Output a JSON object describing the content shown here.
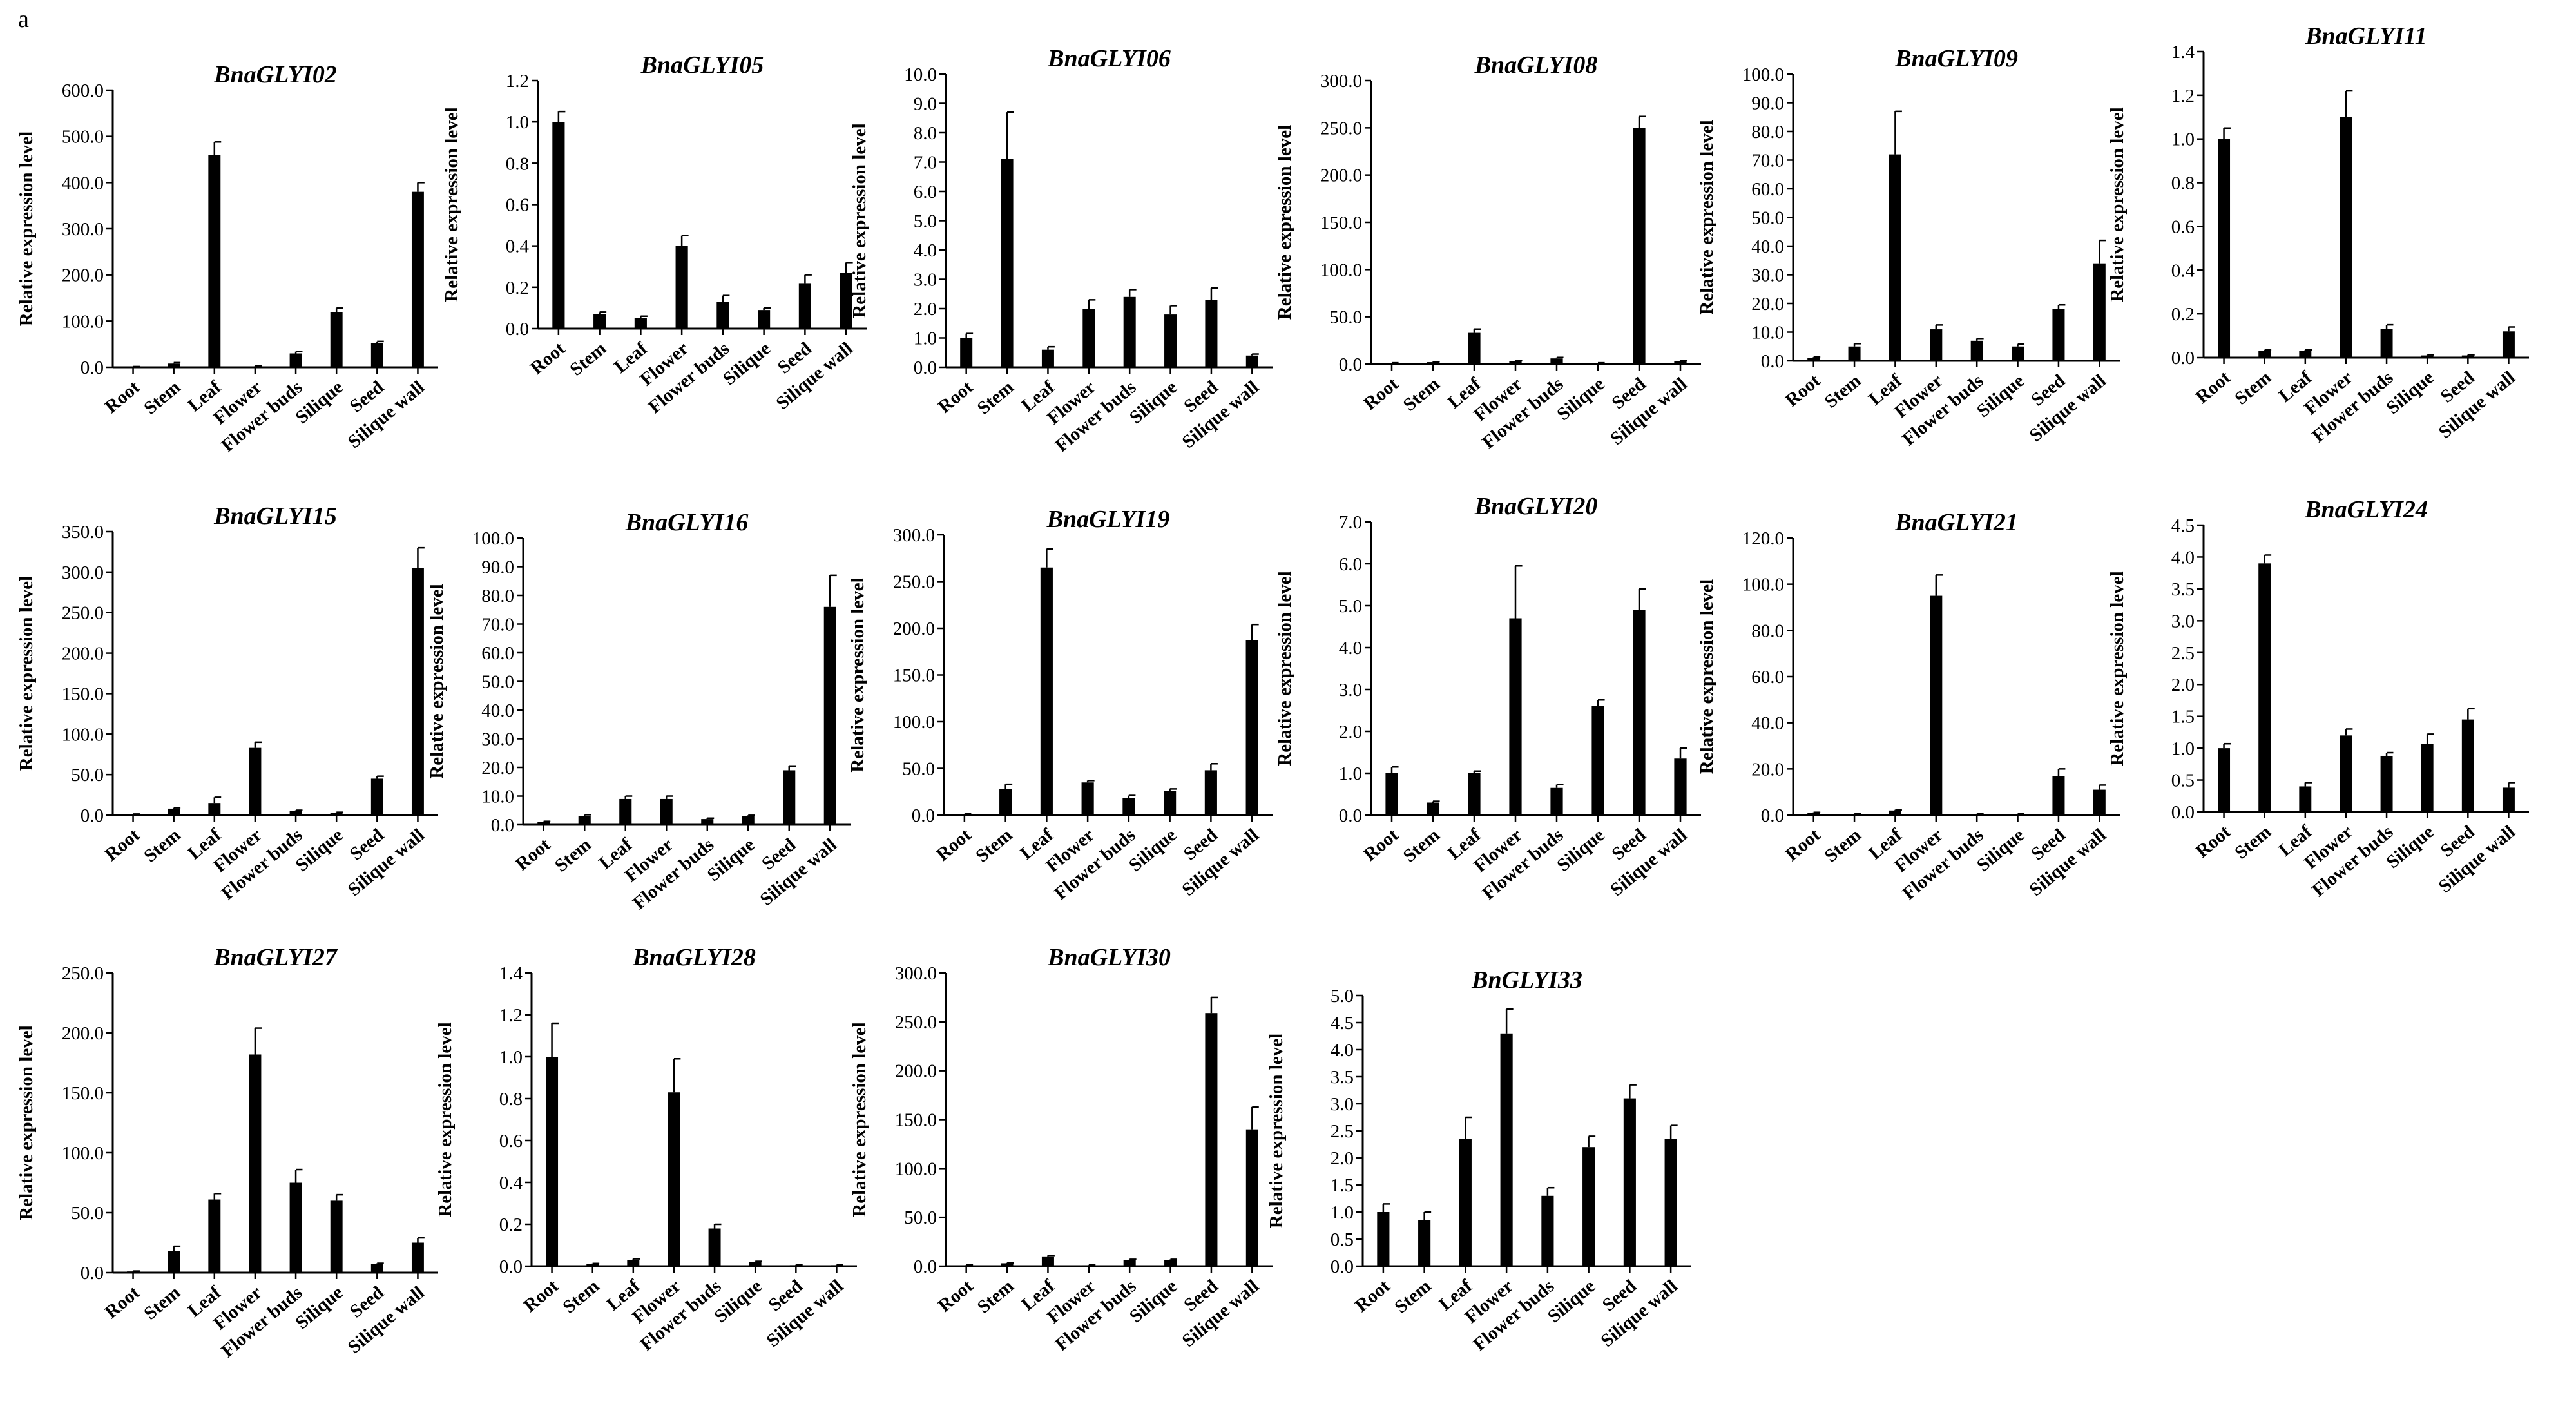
{
  "figure": {
    "panel_label": "a"
  },
  "colors": {
    "bar": "#000000",
    "axis": "#000000",
    "background": "#ffffff"
  },
  "chart_data": [
    {
      "type": "bar",
      "title": "BnaGLYI02",
      "ylabel": "Relative expression level",
      "xlabel": "",
      "categories": [
        "Root",
        "Stem",
        "Leaf",
        "Flower",
        "Flower buds",
        "Silique",
        "Seed",
        "Silique wall"
      ],
      "values": [
        1.0,
        8.0,
        460.0,
        2.0,
        30.0,
        120.0,
        52.0,
        380.0
      ],
      "errors": [
        0.5,
        2.0,
        28.0,
        0.5,
        4.0,
        8.0,
        4.0,
        20.0
      ],
      "ylim": [
        0,
        600
      ],
      "yticks": [
        "0.0",
        "100.0",
        "200.0",
        "300.0",
        "400.0",
        "500.0",
        "600.0"
      ]
    },
    {
      "type": "bar",
      "title": "BnaGLYI05",
      "ylabel": "Relative expression level",
      "xlabel": "",
      "categories": [
        "Root",
        "Stem",
        "Leaf",
        "Flower",
        "Flower buds",
        "Silique",
        "Seed",
        "Silique wall"
      ],
      "values": [
        1.0,
        0.07,
        0.05,
        0.4,
        0.13,
        0.09,
        0.22,
        0.27
      ],
      "errors": [
        0.05,
        0.01,
        0.01,
        0.05,
        0.03,
        0.01,
        0.04,
        0.05
      ],
      "ylim": [
        0,
        1.2
      ],
      "yticks": [
        "0.0",
        "0.2",
        "0.4",
        "0.6",
        "0.8",
        "1.0",
        "1.2"
      ]
    },
    {
      "type": "bar",
      "title": "BnaGLYI06",
      "ylabel": "Relative expression level",
      "xlabel": "",
      "categories": [
        "Root",
        "Stem",
        "Leaf",
        "Flower",
        "Flower buds",
        "Silique",
        "Seed",
        "Silique wall"
      ],
      "values": [
        1.0,
        7.1,
        0.6,
        2.0,
        2.4,
        1.8,
        2.3,
        0.4
      ],
      "errors": [
        0.15,
        1.6,
        0.1,
        0.3,
        0.25,
        0.3,
        0.4,
        0.05
      ],
      "ylim": [
        0,
        10
      ],
      "yticks": [
        "0.0",
        "1.0",
        "2.0",
        "3.0",
        "4.0",
        "5.0",
        "6.0",
        "7.0",
        "8.0",
        "9.0",
        "10.0"
      ]
    },
    {
      "type": "bar",
      "title": "BnaGLYI08",
      "ylabel": "Relative expression level",
      "xlabel": "",
      "categories": [
        "Root",
        "Stem",
        "Leaf",
        "Flower",
        "Flower buds",
        "Silique",
        "Seed",
        "Silique wall"
      ],
      "values": [
        1.0,
        2.0,
        33.0,
        3.0,
        6.0,
        1.0,
        250.0,
        3.0
      ],
      "errors": [
        0.3,
        0.5,
        4.0,
        0.5,
        1.0,
        0.3,
        12.0,
        0.5
      ],
      "ylim": [
        0,
        300
      ],
      "yticks": [
        "0.0",
        "50.0",
        "100.0",
        "150.0",
        "200.0",
        "250.0",
        "300.0"
      ]
    },
    {
      "type": "bar",
      "title": "BnaGLYI09",
      "ylabel": "Relative expression level",
      "xlabel": "",
      "categories": [
        "Root",
        "Stem",
        "Leaf",
        "Flower",
        "Flower buds",
        "Silique",
        "Seed",
        "Silique wall"
      ],
      "values": [
        1.0,
        5.0,
        72.0,
        11.0,
        7.0,
        5.0,
        18.0,
        34.0
      ],
      "errors": [
        0.3,
        1.0,
        15.0,
        1.5,
        0.8,
        0.8,
        1.5,
        8.0
      ],
      "ylim": [
        0,
        100
      ],
      "yticks": [
        "0.0",
        "10.0",
        "20.0",
        "30.0",
        "40.0",
        "50.0",
        "60.0",
        "70.0",
        "80.0",
        "90.0",
        "100.0"
      ]
    },
    {
      "type": "bar",
      "title": "BnaGLYI11",
      "ylabel": "Relative expression level",
      "xlabel": "",
      "categories": [
        "Root",
        "Stem",
        "Leaf",
        "Flower",
        "Flower buds",
        "Silique",
        "Seed",
        "Silique wall"
      ],
      "values": [
        1.0,
        0.03,
        0.03,
        1.1,
        0.13,
        0.01,
        0.01,
        0.12
      ],
      "errors": [
        0.05,
        0.005,
        0.005,
        0.12,
        0.02,
        0.003,
        0.003,
        0.02
      ],
      "ylim": [
        0,
        1.4
      ],
      "yticks": [
        "0.0",
        "0.2",
        "0.4",
        "0.6",
        "0.8",
        "1.0",
        "1.2",
        "1.4"
      ]
    },
    {
      "type": "bar",
      "title": "BnaGLYI15",
      "ylabel": "Relative expression level",
      "xlabel": "",
      "categories": [
        "Root",
        "Stem",
        "Leaf",
        "Flower",
        "Flower buds",
        "Silique",
        "Seed",
        "Silique wall"
      ],
      "values": [
        1.0,
        8.0,
        15.0,
        83.0,
        5.0,
        3.0,
        45.0,
        305.0
      ],
      "errors": [
        0.3,
        1.0,
        7.0,
        7.0,
        1.0,
        0.5,
        3.0,
        25.0
      ],
      "ylim": [
        0,
        350
      ],
      "yticks": [
        "0.0",
        "50.0",
        "100.0",
        "150.0",
        "200.0",
        "250.0",
        "300.0",
        "350.0"
      ]
    },
    {
      "type": "bar",
      "title": "BnaGLYI16",
      "ylabel": "Relative expression level",
      "xlabel": "",
      "categories": [
        "Root",
        "Stem",
        "Leaf",
        "Flower",
        "Flower buds",
        "Silique",
        "Seed",
        "Silique wall"
      ],
      "values": [
        1.0,
        3.0,
        9.0,
        9.0,
        2.0,
        3.0,
        19.0,
        76.0
      ],
      "errors": [
        0.2,
        0.5,
        1.0,
        1.0,
        0.3,
        0.3,
        1.5,
        11.0
      ],
      "ylim": [
        0,
        100
      ],
      "yticks": [
        "0.0",
        "10.0",
        "20.0",
        "30.0",
        "40.0",
        "50.0",
        "60.0",
        "70.0",
        "80.0",
        "90.0",
        "100.0"
      ]
    },
    {
      "type": "bar",
      "title": "BnaGLYI19",
      "ylabel": "Relative expression level",
      "xlabel": "",
      "categories": [
        "Root",
        "Stem",
        "Leaf",
        "Flower",
        "Flower buds",
        "Silique",
        "Seed",
        "Silique wall"
      ],
      "values": [
        1.0,
        28.0,
        265.0,
        35.0,
        18.0,
        26.0,
        48.0,
        187.0
      ],
      "errors": [
        0.3,
        5.0,
        20.0,
        2.0,
        3.0,
        2.0,
        7.0,
        17.0
      ],
      "ylim": [
        0,
        300
      ],
      "yticks": [
        "0.0",
        "50.0",
        "100.0",
        "150.0",
        "200.0",
        "250.0",
        "300.0"
      ]
    },
    {
      "type": "bar",
      "title": "BnaGLYI20",
      "ylabel": "Relative expression level",
      "xlabel": "",
      "categories": [
        "Root",
        "Stem",
        "Leaf",
        "Flower",
        "Flower buds",
        "Silique",
        "Seed",
        "Silique wall"
      ],
      "values": [
        1.0,
        0.3,
        1.0,
        4.7,
        0.65,
        2.6,
        4.9,
        1.35
      ],
      "errors": [
        0.15,
        0.03,
        0.05,
        1.25,
        0.08,
        0.15,
        0.5,
        0.25
      ],
      "ylim": [
        0,
        7
      ],
      "yticks": [
        "0.0",
        "1.0",
        "2.0",
        "3.0",
        "4.0",
        "5.0",
        "6.0",
        "7.0"
      ]
    },
    {
      "type": "bar",
      "title": "BnaGLYI21",
      "ylabel": "Relative expression level",
      "xlabel": "",
      "categories": [
        "Root",
        "Stem",
        "Leaf",
        "Flower",
        "Flower buds",
        "Silique",
        "Seed",
        "Silique wall"
      ],
      "values": [
        1.0,
        0.5,
        2.0,
        95.0,
        0.5,
        0.5,
        17.0,
        11.0
      ],
      "errors": [
        0.2,
        0.1,
        0.3,
        9.0,
        0.1,
        0.1,
        3.0,
        2.0
      ],
      "ylim": [
        0,
        120
      ],
      "yticks": [
        "0.0",
        "20.0",
        "40.0",
        "60.0",
        "80.0",
        "100.0",
        "120.0"
      ]
    },
    {
      "type": "bar",
      "title": "BnaGLYI24",
      "ylabel": "Relative expression level",
      "xlabel": "",
      "categories": [
        "Root",
        "Stem",
        "Leaf",
        "Flower",
        "Flower buds",
        "Silique",
        "Seed",
        "Silique wall"
      ],
      "values": [
        1.0,
        3.9,
        0.4,
        1.2,
        0.88,
        1.07,
        1.45,
        0.38
      ],
      "errors": [
        0.07,
        0.13,
        0.06,
        0.1,
        0.05,
        0.15,
        0.17,
        0.08
      ],
      "ylim": [
        0,
        4.5
      ],
      "yticks": [
        "0.0",
        "0.5",
        "1.0",
        "1.5",
        "2.0",
        "2.5",
        "3.0",
        "3.5",
        "4.0",
        "4.5"
      ]
    },
    {
      "type": "bar",
      "title": "BnaGLYI27",
      "ylabel": "Relative expression level",
      "xlabel": "",
      "categories": [
        "Root",
        "Stem",
        "Leaf",
        "Flower",
        "Flower buds",
        "Silique",
        "Seed",
        "Silique wall"
      ],
      "values": [
        1.0,
        18.0,
        61.0,
        182.0,
        75.0,
        60.0,
        7.0,
        25.0
      ],
      "errors": [
        0.3,
        4.0,
        5.0,
        22.0,
        11.0,
        5.0,
        0.8,
        4.0
      ],
      "ylim": [
        0,
        250
      ],
      "yticks": [
        "0.0",
        "50.0",
        "100.0",
        "150.0",
        "200.0",
        "250.0"
      ]
    },
    {
      "type": "bar",
      "title": "BnaGLYI28",
      "ylabel": "Relative expression level",
      "xlabel": "",
      "categories": [
        "Root",
        "Stem",
        "Leaf",
        "Flower",
        "Flower buds",
        "Silique",
        "Seed",
        "Silique wall"
      ],
      "values": [
        1.0,
        0.01,
        0.03,
        0.83,
        0.18,
        0.02,
        0.005,
        0.005
      ],
      "errors": [
        0.16,
        0.003,
        0.005,
        0.16,
        0.02,
        0.003,
        0.002,
        0.002
      ],
      "ylim": [
        0,
        1.4
      ],
      "yticks": [
        "0.0",
        "0.2",
        "0.4",
        "0.6",
        "0.8",
        "1.0",
        "1.2",
        "1.4"
      ]
    },
    {
      "type": "bar",
      "title": "BnaGLYI30",
      "ylabel": "Relative expression level",
      "xlabel": "",
      "categories": [
        "Root",
        "Stem",
        "Leaf",
        "Flower",
        "Flower buds",
        "Silique",
        "Seed",
        "Silique wall"
      ],
      "values": [
        1.0,
        3.0,
        10.0,
        1.0,
        6.0,
        6.0,
        259.0,
        140.0
      ],
      "errors": [
        0.2,
        0.5,
        1.0,
        0.2,
        1.0,
        1.0,
        16.0,
        23.0
      ],
      "ylim": [
        0,
        300
      ],
      "yticks": [
        "0.0",
        "50.0",
        "100.0",
        "150.0",
        "200.0",
        "250.0",
        "300.0"
      ]
    },
    {
      "type": "bar",
      "title": "BnGLYI33",
      "ylabel": "Relative expression level",
      "xlabel": "",
      "categories": [
        "Root",
        "Stem",
        "Leaf",
        "Flower",
        "Flower buds",
        "Silique",
        "Seed",
        "Silique wall"
      ],
      "values": [
        1.0,
        0.85,
        2.35,
        4.3,
        1.3,
        2.2,
        3.1,
        2.35
      ],
      "errors": [
        0.15,
        0.15,
        0.4,
        0.45,
        0.15,
        0.2,
        0.25,
        0.25
      ],
      "ylim": [
        0,
        5
      ],
      "yticks": [
        "0.0",
        "0.5",
        "1.0",
        "1.5",
        "2.0",
        "2.5",
        "3.0",
        "3.5",
        "4.0",
        "4.5",
        "5.0"
      ]
    }
  ]
}
